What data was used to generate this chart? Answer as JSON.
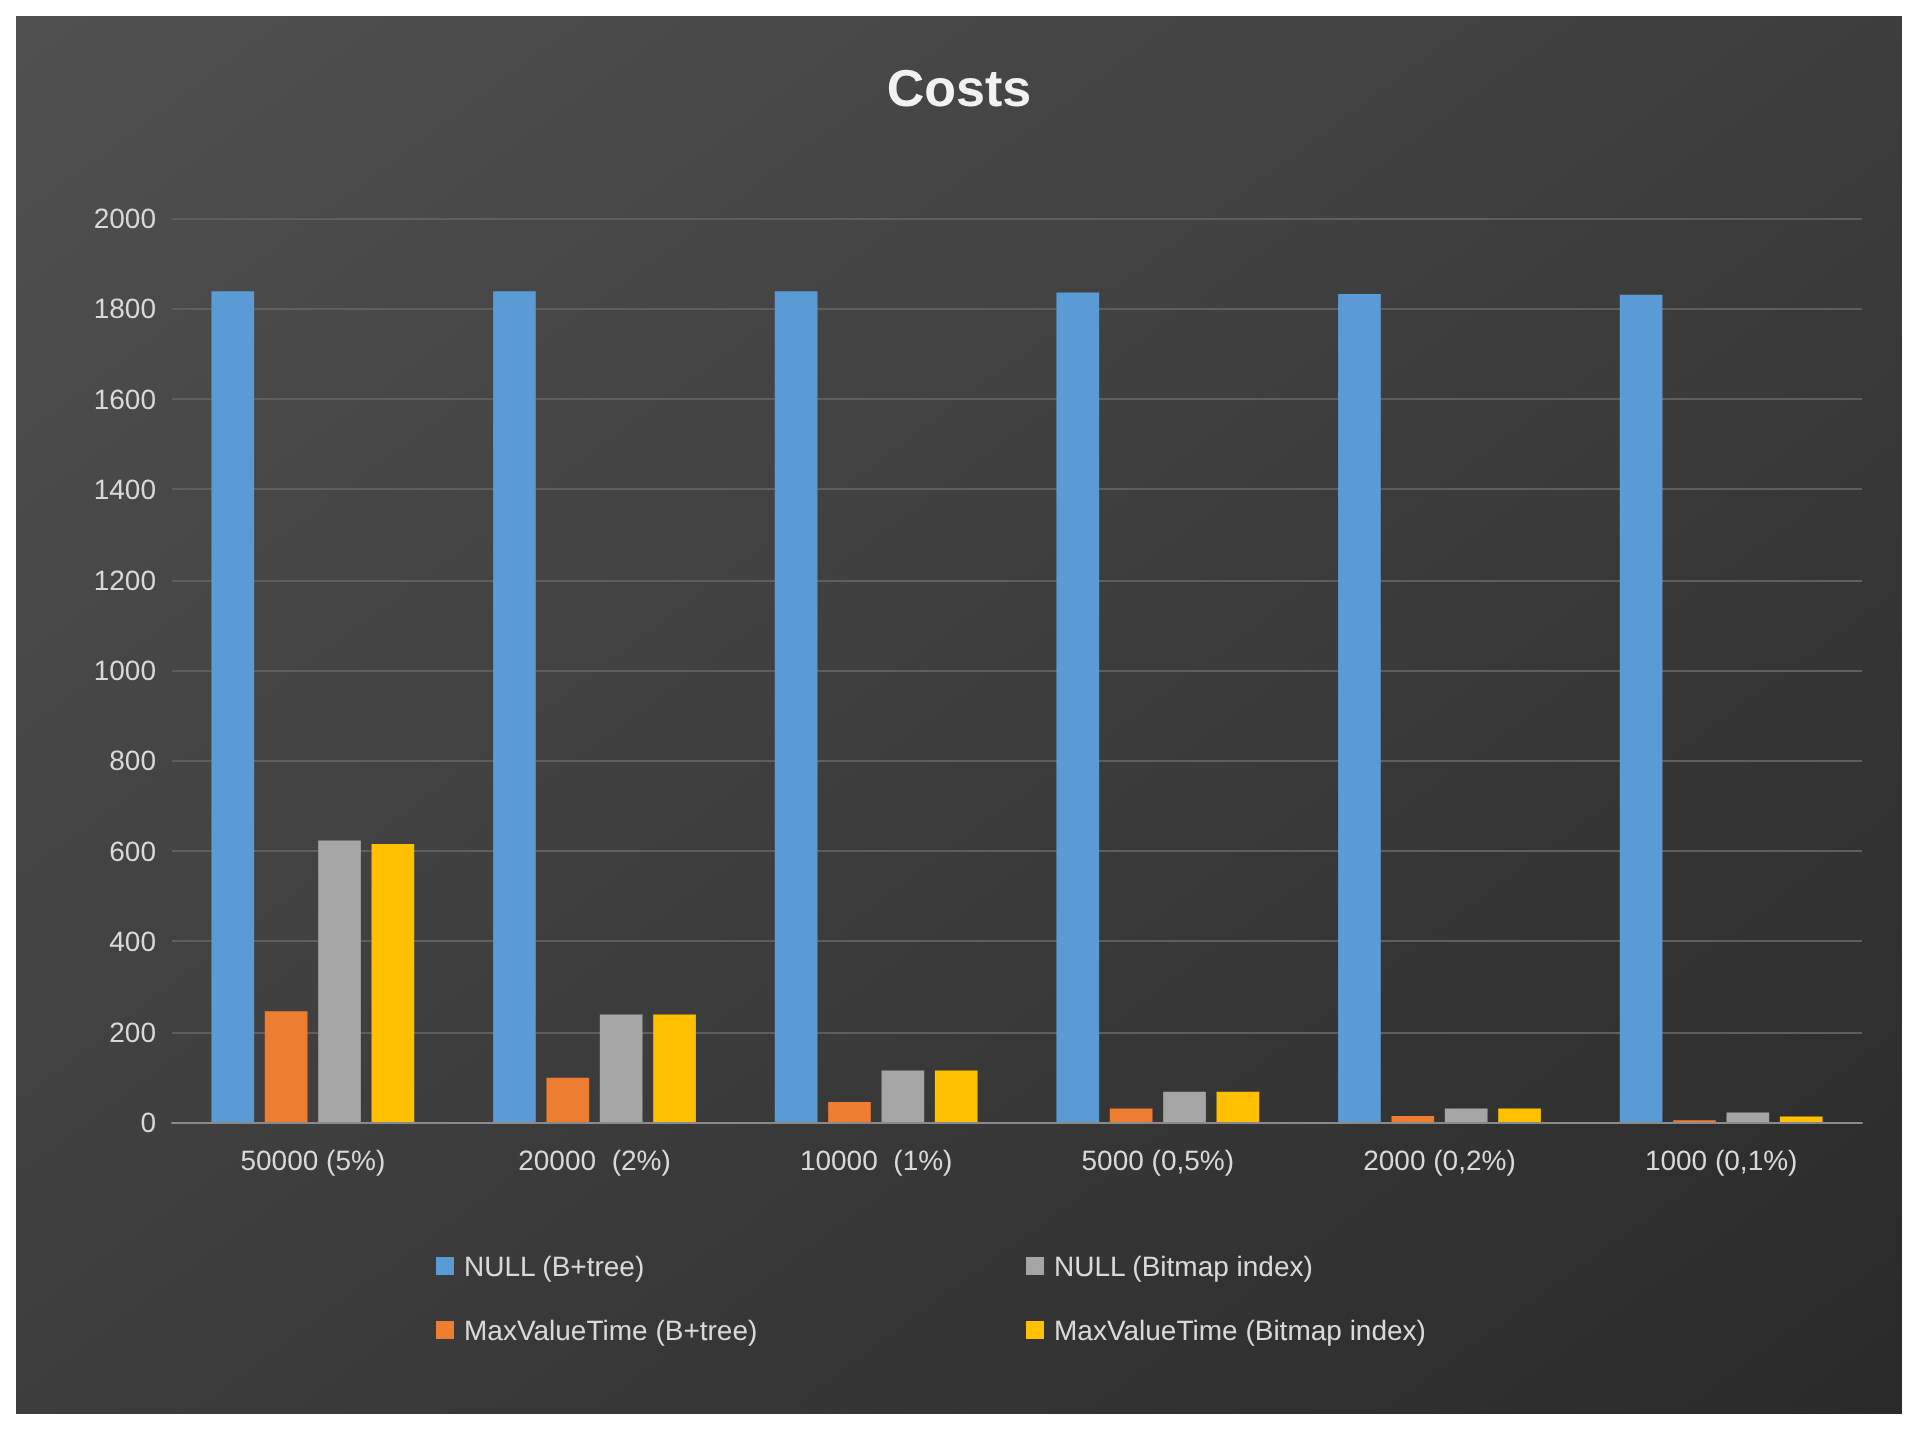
{
  "chart_data": {
    "type": "bar",
    "title": "Costs",
    "categories": [
      "50000 (5%)",
      "20000  (2%)",
      "10000  (1%)",
      "5000 (0,5%)",
      "2000 (0,2%)",
      "1000 (0,1%)"
    ],
    "series": [
      {
        "name": "NULL (B+tree)",
        "color": "#5b9bd5",
        "values": [
          1838,
          1838,
          1838,
          1835,
          1832,
          1830
        ]
      },
      {
        "name": "MaxValueTime (B+tree)",
        "color": "#ed7d31",
        "values": [
          245,
          98,
          44,
          30,
          13,
          4
        ]
      },
      {
        "name": "NULL (Bitmap index)",
        "color": "#a5a5a5",
        "values": [
          623,
          238,
          114,
          67,
          30,
          21
        ]
      },
      {
        "name": "MaxValueTime (Bitmap index)",
        "color": "#ffc000",
        "values": [
          615,
          238,
          114,
          67,
          30,
          12
        ]
      }
    ],
    "ylim": [
      0,
      2000
    ],
    "yticks": [
      0,
      200,
      400,
      600,
      800,
      1000,
      1200,
      1400,
      1600,
      1800,
      2000
    ],
    "grid": "y",
    "legend": "bottom"
  }
}
